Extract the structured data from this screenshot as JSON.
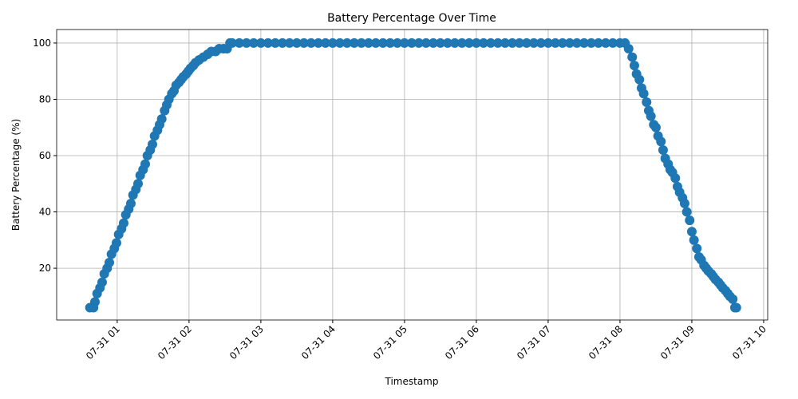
{
  "chart_data": {
    "type": "scatter",
    "title": "Battery Percentage Over Time",
    "x_label": "Timestamp",
    "y_label": "Battery Percentage (%)",
    "color": "#1f77b4",
    "grid": true,
    "x": [
      0.62,
      0.67,
      0.69,
      0.72,
      0.76,
      0.79,
      0.82,
      0.86,
      0.89,
      0.92,
      0.96,
      0.99,
      1.02,
      1.06,
      1.09,
      1.12,
      1.16,
      1.19,
      1.22,
      1.26,
      1.29,
      1.32,
      1.36,
      1.39,
      1.42,
      1.46,
      1.49,
      1.52,
      1.56,
      1.59,
      1.62,
      1.66,
      1.69,
      1.72,
      1.76,
      1.79,
      1.82,
      1.86,
      1.89,
      1.92,
      1.96,
      1.99,
      2.02,
      2.06,
      2.09,
      2.14,
      2.2,
      2.26,
      2.31,
      2.37,
      2.42,
      2.48,
      2.53,
      2.57,
      2.6,
      2.7,
      2.8,
      2.9,
      3.0,
      3.1,
      3.2,
      3.3,
      3.4,
      3.5,
      3.6,
      3.7,
      3.8,
      3.9,
      4.0,
      4.1,
      4.2,
      4.3,
      4.4,
      4.5,
      4.6,
      4.7,
      4.8,
      4.9,
      5.0,
      5.1,
      5.2,
      5.3,
      5.4,
      5.5,
      5.6,
      5.7,
      5.8,
      5.9,
      6.0,
      6.1,
      6.2,
      6.3,
      6.4,
      6.5,
      6.6,
      6.7,
      6.8,
      6.9,
      7.0,
      7.1,
      7.2,
      7.3,
      7.4,
      7.5,
      7.6,
      7.7,
      7.8,
      7.9,
      8.0,
      8.07,
      8.12,
      8.17,
      8.2,
      8.23,
      8.27,
      8.3,
      8.33,
      8.37,
      8.4,
      8.43,
      8.47,
      8.5,
      8.53,
      8.57,
      8.6,
      8.63,
      8.67,
      8.7,
      8.73,
      8.77,
      8.8,
      8.83,
      8.87,
      8.9,
      8.93,
      8.97,
      9.0,
      9.03,
      9.07,
      9.1,
      9.13,
      9.17,
      9.2,
      9.23,
      9.27,
      9.3,
      9.33,
      9.37,
      9.4,
      9.43,
      9.47,
      9.5,
      9.53,
      9.57,
      9.6,
      9.62
    ],
    "values": [
      6,
      6,
      8,
      11,
      13,
      15,
      18,
      20,
      22,
      25,
      27,
      29,
      32,
      34,
      36,
      39,
      41,
      43,
      46,
      48,
      50,
      53,
      55,
      57,
      60,
      62,
      64,
      67,
      69,
      71,
      73,
      76,
      78,
      80,
      82,
      83,
      85,
      86,
      87,
      88,
      89,
      90,
      91,
      92,
      93,
      94,
      95,
      96,
      97,
      97,
      98,
      98,
      98,
      100,
      100,
      100,
      100,
      100,
      100,
      100,
      100,
      100,
      100,
      100,
      100,
      100,
      100,
      100,
      100,
      100,
      100,
      100,
      100,
      100,
      100,
      100,
      100,
      100,
      100,
      100,
      100,
      100,
      100,
      100,
      100,
      100,
      100,
      100,
      100,
      100,
      100,
      100,
      100,
      100,
      100,
      100,
      100,
      100,
      100,
      100,
      100,
      100,
      100,
      100,
      100,
      100,
      100,
      100,
      100,
      100,
      98,
      95,
      92,
      89,
      87,
      84,
      82,
      79,
      76,
      74,
      71,
      70,
      67,
      65,
      62,
      59,
      57,
      55,
      54,
      52,
      49,
      47,
      45,
      43,
      40,
      37,
      33,
      30,
      27,
      24,
      23,
      21,
      20,
      19,
      18,
      17,
      16,
      15,
      14,
      13,
      12,
      11,
      10,
      9,
      6,
      6
    ],
    "xlim": [
      0.157,
      10.056
    ],
    "ylim": [
      1.6,
      104.8
    ],
    "yticks": [
      20,
      40,
      60,
      80,
      100
    ],
    "xticks": [
      {
        "value": 1,
        "label": "07-31 01"
      },
      {
        "value": 2,
        "label": "07-31 02"
      },
      {
        "value": 3,
        "label": "07-31 03"
      },
      {
        "value": 4,
        "label": "07-31 04"
      },
      {
        "value": 5,
        "label": "07-31 05"
      },
      {
        "value": 6,
        "label": "07-31 06"
      },
      {
        "value": 7,
        "label": "07-31 07"
      },
      {
        "value": 8,
        "label": "07-31 08"
      },
      {
        "value": 9,
        "label": "07-31 09"
      },
      {
        "value": 10,
        "label": "07-31 10"
      }
    ]
  }
}
